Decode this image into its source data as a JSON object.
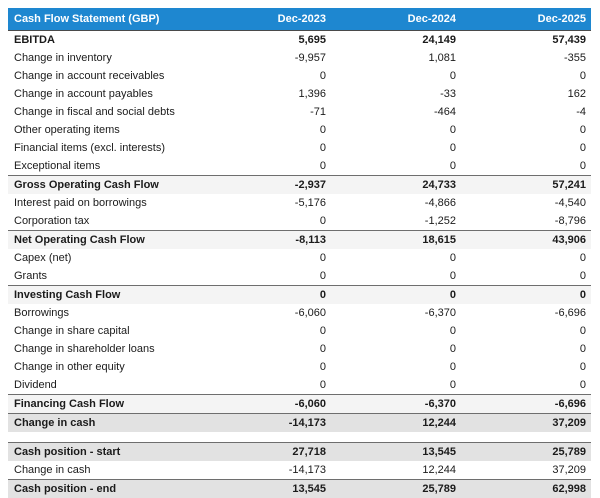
{
  "table": {
    "title": "Cash Flow Statement (GBP)",
    "columns": [
      "Dec-2023",
      "Dec-2024",
      "Dec-2025"
    ],
    "colors": {
      "header_bg": "#1e87d0",
      "header_text": "#ffffff",
      "subtotal_row_bg": "#f4f4f4",
      "total_row_bg": "#e2e2e2",
      "rule_line": "#6e6e6e",
      "body_text": "#1b1b1b"
    },
    "rows": [
      {
        "label": "EBITDA",
        "values": [
          "5,695",
          "24,149",
          "57,439"
        ],
        "style": "bold",
        "rule": false
      },
      {
        "label": "Change in inventory",
        "values": [
          "-9,957",
          "1,081",
          "-355"
        ],
        "style": "normal",
        "rule": false
      },
      {
        "label": "Change in account receivables",
        "values": [
          "0",
          "0",
          "0"
        ],
        "style": "normal",
        "rule": false
      },
      {
        "label": "Change in account payables",
        "values": [
          "1,396",
          "-33",
          "162"
        ],
        "style": "normal",
        "rule": false
      },
      {
        "label": "Change in fiscal and social debts",
        "values": [
          "-71",
          "-464",
          "-4"
        ],
        "style": "normal",
        "rule": false
      },
      {
        "label": "Other operating items",
        "values": [
          "0",
          "0",
          "0"
        ],
        "style": "normal",
        "rule": false
      },
      {
        "label": "Financial items (excl. interests)",
        "values": [
          "0",
          "0",
          "0"
        ],
        "style": "normal",
        "rule": false
      },
      {
        "label": "Exceptional items",
        "values": [
          "0",
          "0",
          "0"
        ],
        "style": "normal",
        "rule": false
      },
      {
        "label": "Gross Operating Cash Flow",
        "values": [
          "-2,937",
          "24,733",
          "57,241"
        ],
        "style": "subtotal",
        "rule": true
      },
      {
        "label": "Interest paid on borrowings",
        "values": [
          "-5,176",
          "-4,866",
          "-4,540"
        ],
        "style": "normal",
        "rule": false
      },
      {
        "label": "Corporation tax",
        "values": [
          "0",
          "-1,252",
          "-8,796"
        ],
        "style": "normal",
        "rule": false
      },
      {
        "label": "Net Operating Cash Flow",
        "values": [
          "-8,113",
          "18,615",
          "43,906"
        ],
        "style": "subtotal",
        "rule": true
      },
      {
        "label": "Capex (net)",
        "values": [
          "0",
          "0",
          "0"
        ],
        "style": "normal",
        "rule": false
      },
      {
        "label": "Grants",
        "values": [
          "0",
          "0",
          "0"
        ],
        "style": "normal",
        "rule": false
      },
      {
        "label": "Investing Cash Flow",
        "values": [
          "0",
          "0",
          "0"
        ],
        "style": "subtotal",
        "rule": true
      },
      {
        "label": "Borrowings",
        "values": [
          "-6,060",
          "-6,370",
          "-6,696"
        ],
        "style": "normal",
        "rule": false
      },
      {
        "label": "Change in share capital",
        "values": [
          "0",
          "0",
          "0"
        ],
        "style": "normal",
        "rule": false
      },
      {
        "label": "Change in shareholder loans",
        "values": [
          "0",
          "0",
          "0"
        ],
        "style": "normal",
        "rule": false
      },
      {
        "label": "Change in other equity",
        "values": [
          "0",
          "0",
          "0"
        ],
        "style": "normal",
        "rule": false
      },
      {
        "label": "Dividend",
        "values": [
          "0",
          "0",
          "0"
        ],
        "style": "normal",
        "rule": false
      },
      {
        "label": "Financing Cash Flow",
        "values": [
          "-6,060",
          "-6,370",
          "-6,696"
        ],
        "style": "subtotal",
        "rule": true
      },
      {
        "label": "Change in cash",
        "values": [
          "-14,173",
          "12,244",
          "37,209"
        ],
        "style": "total",
        "rule": true
      },
      {
        "label": "",
        "values": [
          "",
          "",
          ""
        ],
        "style": "spacer",
        "rule": false
      },
      {
        "label": "Cash position - start",
        "values": [
          "27,718",
          "13,545",
          "25,789"
        ],
        "style": "total",
        "rule": true
      },
      {
        "label": "Change in cash",
        "values": [
          "-14,173",
          "12,244",
          "37,209"
        ],
        "style": "normal",
        "rule": false
      },
      {
        "label": "Cash position - end",
        "values": [
          "13,545",
          "25,789",
          "62,998"
        ],
        "style": "total",
        "rule": true
      }
    ]
  }
}
